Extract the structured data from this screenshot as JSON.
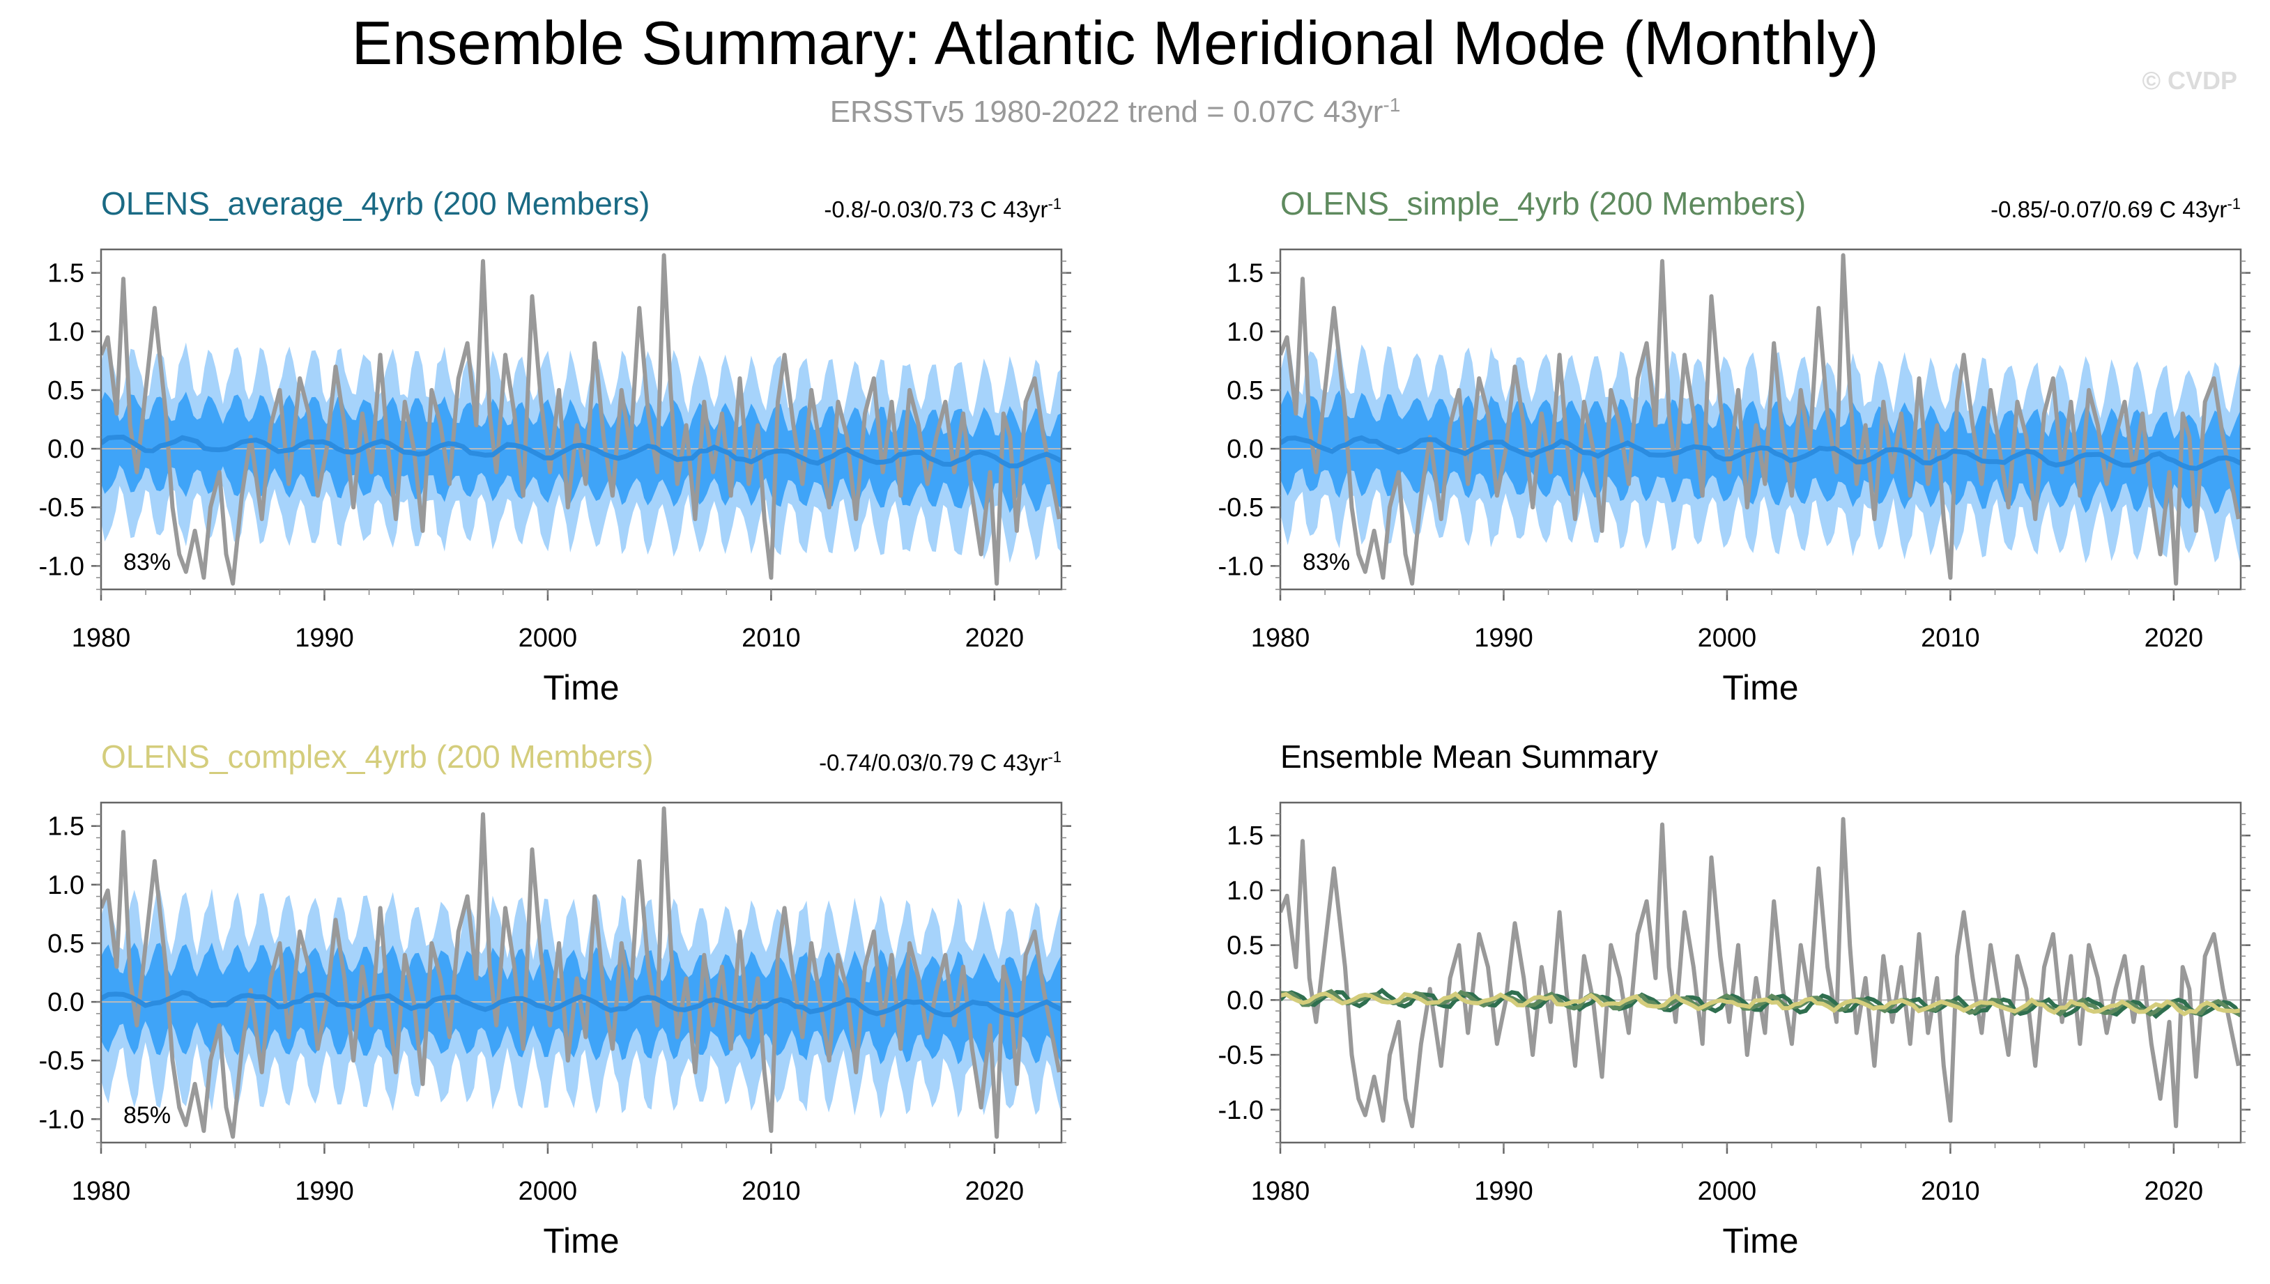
{
  "header": {
    "title": "Ensemble Summary: Atlantic Meridional Mode (Monthly)",
    "subtitle": "ERSSTv5 1980-2022 trend = 0.07C 43yr",
    "subtitle_sup": "-1",
    "copyright": "© CVDP"
  },
  "colors": {
    "observed": "#999999",
    "ensemble_mean": "#2b8ce0",
    "band_inner": "#3fa4f8",
    "band_outer": "#a6d3fb",
    "average": "#1a6a84",
    "simple": "#5e8a5e",
    "complex": "#d4cd7c",
    "summary_mean_a": "#2f6f4f",
    "summary_mean_b": "#5e8a5e",
    "summary_mean_c": "#d4cd7c"
  },
  "chart_data": [
    {
      "type": "line",
      "panel": "average",
      "title": "OLENS_average_4yrb (200 Members)",
      "trend_text": "-0.8/-0.03/0.73 C 43yr",
      "trend_sup": "-1",
      "percent_label": "83%",
      "xlabel": "Time",
      "ylabel": "",
      "xlim": [
        1980,
        2023
      ],
      "ylim": [
        -1.2,
        1.7
      ],
      "xticks": [
        "1980",
        "1990",
        "2000",
        "2010",
        "2020"
      ],
      "yticks": [
        "1.5",
        "1.0",
        "0.5",
        "0.0",
        "-0.5",
        "-1.0"
      ],
      "ensemble_mean_value": [
        0.05,
        -0.1
      ],
      "inner_band_halfwidth": 0.32,
      "outer_band_halfwidth": 0.62,
      "series": [
        {
          "role": "observed",
          "x": [
            1980.0,
            1980.3,
            1980.7,
            1981.0,
            1981.3,
            1981.6,
            1982.0,
            1982.4,
            1982.9,
            1983.2,
            1983.5,
            1983.8,
            1984.2,
            1984.6,
            1984.9,
            1985.3,
            1985.6,
            1985.9,
            1986.3,
            1986.7,
            1987.2,
            1987.6,
            1988.0,
            1988.4,
            1988.9,
            1989.3,
            1989.7,
            1990.1,
            1990.5,
            1990.9,
            1991.3,
            1991.7,
            1992.1,
            1992.5,
            1992.8,
            1993.2,
            1993.6,
            1994.0,
            1994.4,
            1994.8,
            1995.2,
            1995.6,
            1996.0,
            1996.4,
            1996.8,
            1997.1,
            1997.4,
            1997.7,
            1998.1,
            1998.5,
            1998.9,
            1999.3,
            1999.7,
            2000.1,
            2000.5,
            2000.9,
            2001.3,
            2001.7,
            2002.1,
            2002.5,
            2002.9,
            2003.3,
            2003.7,
            2004.1,
            2004.5,
            2004.9,
            2005.2,
            2005.5,
            2005.8,
            2006.2,
            2006.6,
            2007.0,
            2007.4,
            2007.8,
            2008.2,
            2008.6,
            2009.0,
            2009.4,
            2009.7,
            2010.0,
            2010.3,
            2010.6,
            2011.0,
            2011.4,
            2011.8,
            2012.2,
            2012.6,
            2013.0,
            2013.4,
            2013.8,
            2014.2,
            2014.6,
            2015.0,
            2015.4,
            2015.8,
            2016.2,
            2016.6,
            2017.0,
            2017.4,
            2017.8,
            2018.2,
            2018.6,
            2019.0,
            2019.4,
            2019.8,
            2020.1,
            2020.4,
            2020.7,
            2021.0,
            2021.4,
            2021.8,
            2022.2,
            2022.6,
            2022.9
          ],
          "y": [
            0.8,
            0.95,
            0.3,
            1.45,
            0.2,
            -0.2,
            0.5,
            1.2,
            0.3,
            -0.5,
            -0.9,
            -1.05,
            -0.7,
            -1.1,
            -0.5,
            -0.2,
            -0.9,
            -1.15,
            -0.4,
            0.1,
            -0.6,
            0.2,
            0.5,
            -0.3,
            0.6,
            0.3,
            -0.4,
            0.0,
            0.7,
            0.2,
            -0.5,
            0.3,
            -0.2,
            0.8,
            0.1,
            -0.6,
            0.4,
            0.0,
            -0.7,
            0.5,
            0.2,
            -0.3,
            0.6,
            0.9,
            0.2,
            1.6,
            0.3,
            -0.2,
            0.8,
            0.3,
            -0.4,
            1.3,
            0.4,
            -0.2,
            0.5,
            -0.5,
            0.2,
            -0.3,
            0.9,
            0.1,
            -0.4,
            0.5,
            0.0,
            1.2,
            0.3,
            -0.2,
            1.65,
            0.5,
            -0.3,
            0.2,
            -0.6,
            0.4,
            -0.2,
            0.3,
            -0.4,
            0.6,
            -0.3,
            0.2,
            -0.6,
            -1.1,
            0.4,
            0.8,
            0.2,
            -0.3,
            0.5,
            0.0,
            -0.5,
            0.4,
            0.1,
            -0.6,
            0.3,
            0.6,
            -0.2,
            0.4,
            -0.4,
            0.5,
            0.2,
            -0.3,
            0.1,
            0.4,
            -0.2,
            0.3,
            -0.4,
            -0.9,
            -0.2,
            -1.15,
            0.3,
            0.1,
            -0.7,
            0.4,
            0.6,
            0.1,
            -0.3,
            -0.6
          ]
        }
      ]
    },
    {
      "type": "line",
      "panel": "simple",
      "title": "OLENS_simple_4yrb (200 Members)",
      "trend_text": "-0.85/-0.07/0.69 C 43yr",
      "trend_sup": "-1",
      "percent_label": "83%",
      "xlabel": "Time",
      "ylabel": "",
      "xlim": [
        1980,
        2023
      ],
      "ylim": [
        -1.2,
        1.7
      ],
      "xticks": [
        "1980",
        "1990",
        "2000",
        "2010",
        "2020"
      ],
      "yticks": [
        "1.5",
        "1.0",
        "0.5",
        "0.0",
        "-0.5",
        "-1.0"
      ],
      "ensemble_mean_value": [
        0.05,
        -0.12
      ],
      "inner_band_halfwidth": 0.32,
      "outer_band_halfwidth": 0.62,
      "series": [
        {
          "role": "observed",
          "same_as_panel": "average"
        }
      ]
    },
    {
      "type": "line",
      "panel": "complex",
      "title": "OLENS_complex_4yrb (200 Members)",
      "trend_text": "-0.74/0.03/0.79 C 43yr",
      "trend_sup": "-1",
      "percent_label": "85%",
      "xlabel": "Time",
      "ylabel": "",
      "xlim": [
        1980,
        2023
      ],
      "ylim": [
        -1.2,
        1.7
      ],
      "xticks": [
        "1980",
        "1990",
        "2000",
        "2010",
        "2020"
      ],
      "yticks": [
        "1.5",
        "1.0",
        "0.5",
        "0.0",
        "-0.5",
        "-1.0"
      ],
      "ensemble_mean_value": [
        0.03,
        -0.06
      ],
      "inner_band_halfwidth": 0.34,
      "outer_band_halfwidth": 0.66,
      "series": [
        {
          "role": "observed",
          "same_as_panel": "average"
        }
      ]
    },
    {
      "type": "line",
      "panel": "summary",
      "title": "Ensemble Mean Summary",
      "xlabel": "Time",
      "ylabel": "",
      "xlim": [
        1980,
        2023
      ],
      "ylim": [
        -1.3,
        1.8
      ],
      "xticks": [
        "1980",
        "1990",
        "2000",
        "2010",
        "2020"
      ],
      "yticks": [
        "1.5",
        "1.0",
        "0.5",
        "0.0",
        "-0.5",
        "-1.0"
      ],
      "series": [
        {
          "role": "observed",
          "same_as_panel": "average"
        }
      ]
    }
  ]
}
